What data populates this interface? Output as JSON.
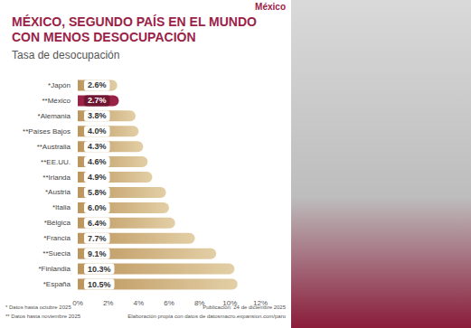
{
  "chart_data": {
    "type": "bar",
    "orientation": "horizontal",
    "title": "MÉXICO, SEGUNDO PAÍS EN EL MUNDO CON MENOS DESOCUPACIÓN",
    "subtitle": "Tasa de desocupación",
    "logo_text": "México",
    "categories": [
      "*Japón",
      "**México",
      "*Alemania",
      "**Países Bajos",
      "**Australia",
      "**EE.UU.",
      "**Irlanda",
      "*Austria",
      "*Italia",
      "*Bélgica",
      "*Francia",
      "**Suecia",
      "*Finlandia",
      "*España"
    ],
    "values": [
      2.6,
      2.7,
      3.8,
      4.0,
      4.3,
      4.6,
      4.9,
      5.8,
      6.0,
      6.4,
      7.7,
      9.1,
      10.3,
      10.5
    ],
    "value_labels": [
      "2.6%",
      "2.7%",
      "3.8%",
      "4.0%",
      "4.3%",
      "4.6%",
      "4.9%",
      "5.8%",
      "6.0%",
      "6.4%",
      "7.7%",
      "9.1%",
      "10.3%",
      "10.5%"
    ],
    "colors": [
      "#bc955c",
      "#9b2247",
      "#bc955c",
      "#bc955c",
      "#bc955c",
      "#bc955c",
      "#bc955c",
      "#bc955c",
      "#bc955c",
      "#bc955c",
      "#bc955c",
      "#bc955c",
      "#bc955c",
      "#bc955c"
    ],
    "xlim": [
      0,
      12
    ],
    "xticks": [
      {
        "value": 0,
        "label": "0%"
      },
      {
        "value": 2,
        "label": "2%"
      },
      {
        "value": 4,
        "label": "4%"
      },
      {
        "value": 6,
        "label": "6%"
      },
      {
        "value": 8,
        "label": "8%"
      },
      {
        "value": 10,
        "label": "10%"
      },
      {
        "value": 12,
        "label": "12%"
      }
    ],
    "grid": false,
    "data_labels": true,
    "footnotes": [
      "* Datos hasta octubre 2025",
      "** Datos hasta noviembre 2025"
    ],
    "publication": "Publicación: 24 de diciembre 2025",
    "source": "Elaboración propia con datos de datosmacro.expansion.com/paro"
  }
}
